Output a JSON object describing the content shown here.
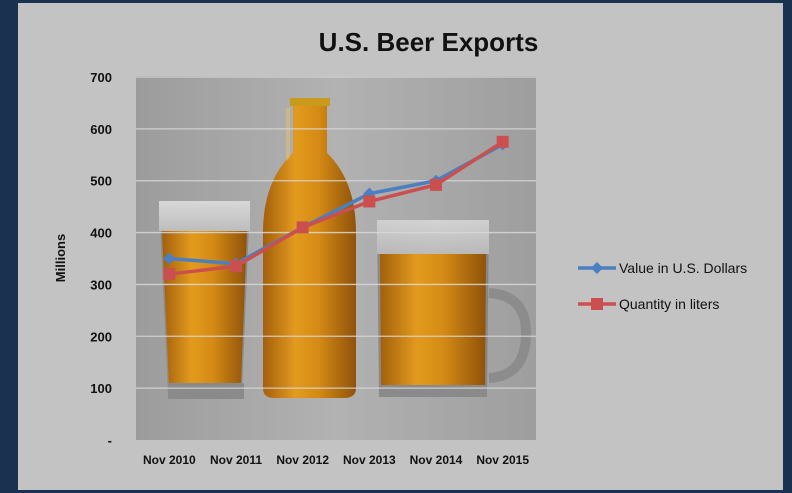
{
  "chart_data": {
    "type": "line",
    "title": "U.S. Beer Exports",
    "xlabel": "",
    "ylabel": "Millions",
    "categories": [
      "Nov 2010",
      "Nov 2011",
      "Nov 2012",
      "Nov 2013",
      "Nov 2014",
      "Nov 2015"
    ],
    "ylim": [
      0,
      700
    ],
    "yticks": [
      0,
      100,
      200,
      300,
      400,
      500,
      600,
      700
    ],
    "yticklabels": [
      "-",
      "100",
      "200",
      "300",
      "400",
      "500",
      "600",
      "700"
    ],
    "grid": true,
    "legend_position": "right",
    "series": [
      {
        "name": "Value in U.S. Dollars",
        "color": "#4a7fc1",
        "marker": "diamond",
        "values": [
          350,
          340,
          410,
          475,
          500,
          570
        ]
      },
      {
        "name": "Quantity in liters",
        "color": "#cc4f4f",
        "marker": "square",
        "values": [
          320,
          335,
          410,
          460,
          492,
          575
        ]
      }
    ],
    "background_image": "beer-glasses-and-bottle"
  }
}
